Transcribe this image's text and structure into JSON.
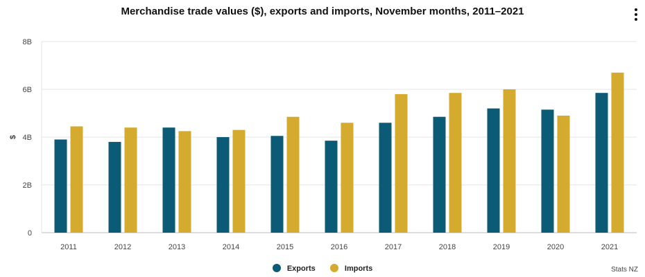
{
  "credit": "Stats NZ",
  "colors": {
    "exports": "#0b5a76",
    "imports": "#d4ab2e"
  },
  "icons": {
    "menu": "more-vert-icon"
  },
  "chart_data": {
    "type": "bar",
    "title": "Merchandise trade values ($), exports and imports, November months, 2011–2021",
    "xlabel": "",
    "ylabel": "$",
    "ylim": [
      0,
      8
    ],
    "yticks": [
      0,
      2,
      4,
      6,
      8
    ],
    "ytick_labels": [
      "0",
      "2B",
      "4B",
      "6B",
      "8B"
    ],
    "categories": [
      "2011",
      "2012",
      "2013",
      "2014",
      "2015",
      "2016",
      "2017",
      "2018",
      "2019",
      "2020",
      "2021"
    ],
    "series": [
      {
        "name": "Exports",
        "values": [
          3.9,
          3.8,
          4.4,
          4.0,
          4.05,
          3.85,
          4.6,
          4.85,
          5.2,
          5.15,
          5.85
        ]
      },
      {
        "name": "Imports",
        "values": [
          4.45,
          4.4,
          4.25,
          4.3,
          4.85,
          4.6,
          5.8,
          5.85,
          6.0,
          4.9,
          6.7
        ]
      }
    ],
    "grid": true,
    "legend_position": "bottom-center"
  }
}
